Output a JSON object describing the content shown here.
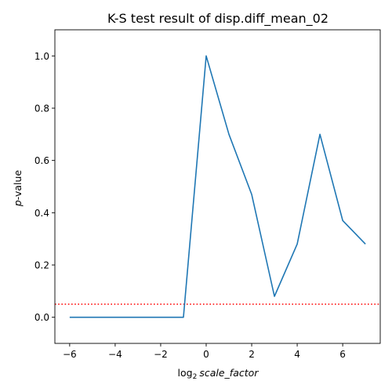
{
  "chart_data": {
    "type": "line",
    "title": "K-S test result of disp.diff_mean_02",
    "xlabel": {
      "prefix": "log",
      "subscript": "2",
      "variable": "scale_factor"
    },
    "ylabel": {
      "variable": "p",
      "suffix": "-value"
    },
    "xlim": [
      -6.65,
      7.65
    ],
    "ylim": [
      -0.1,
      1.1
    ],
    "xticks": [
      -6,
      -4,
      -2,
      0,
      2,
      4,
      6
    ],
    "yticks": [
      0.0,
      0.2,
      0.4,
      0.6,
      0.8,
      1.0
    ],
    "grid": false,
    "series": [
      {
        "color": "#1f77b4",
        "style": "solid",
        "x": [
          -6,
          -5,
          -4,
          -3,
          -2,
          -1,
          0,
          1,
          2,
          3,
          4,
          5,
          6,
          7
        ],
        "y": [
          0.0,
          0.0,
          0.0,
          0.0,
          0.0,
          0.0,
          1.0,
          0.7,
          0.47,
          0.08,
          0.28,
          0.7,
          0.37,
          0.28
        ]
      }
    ],
    "reference_lines": [
      {
        "orientation": "horizontal",
        "y": 0.05,
        "color": "#ff0000",
        "style": "dotted"
      }
    ]
  }
}
